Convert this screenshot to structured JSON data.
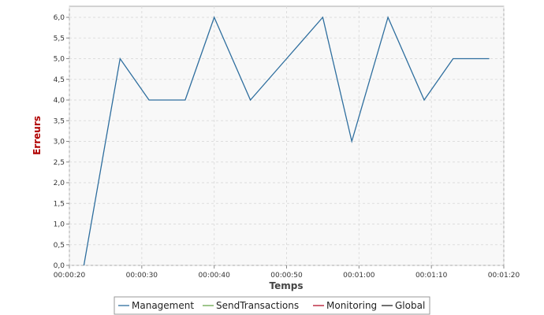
{
  "chart_data": {
    "type": "line",
    "xlabel": "Temps",
    "ylabel": "Erreurs",
    "xlim": [
      "00:00:20",
      "00:01:20"
    ],
    "ylim": [
      0,
      6
    ],
    "x_ticks": [
      "00:00:20",
      "00:00:30",
      "00:00:40",
      "00:00:50",
      "00:01:00",
      "00:01:10",
      "00:01:20"
    ],
    "y_ticks": [
      "0,0",
      "0,5",
      "1,0",
      "1,5",
      "2,0",
      "2,5",
      "3,0",
      "3,5",
      "4,0",
      "4,5",
      "5,0",
      "5,5",
      "6,0"
    ],
    "grid": true,
    "legend_position": "bottom",
    "series": [
      {
        "name": "Management",
        "color": "#2e6e9e",
        "x": [
          "00:00:22",
          "00:00:27",
          "00:00:31",
          "00:00:36",
          "00:00:40",
          "00:00:45",
          "00:00:50",
          "00:00:55",
          "00:00:59",
          "00:01:04",
          "00:01:09",
          "00:01:13",
          "00:01:18"
        ],
        "y": [
          0,
          5,
          4,
          4,
          6,
          4,
          5,
          6,
          3,
          6,
          4,
          5,
          5
        ]
      },
      {
        "name": "SendTransactions",
        "color": "#6aa84f",
        "x": [],
        "y": []
      },
      {
        "name": "Monitoring",
        "color": "#b5122b",
        "x": [],
        "y": []
      },
      {
        "name": "Global",
        "color": "#222222",
        "x": [],
        "y": []
      }
    ],
    "colors": {
      "axis_title_y": "#b00000",
      "axis_title_x": "#444444",
      "plot_background": "#f8f8f8",
      "grid": "#dddddd"
    }
  }
}
